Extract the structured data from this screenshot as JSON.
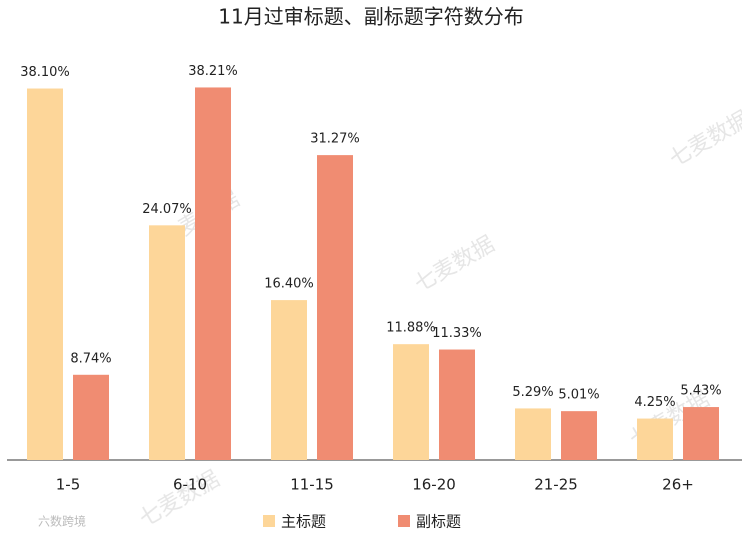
{
  "chart_data": {
    "type": "bar",
    "title": "11月过审标题、副标题字符数分布",
    "categories": [
      "1-5",
      "6-10",
      "11-15",
      "16-20",
      "21-25",
      "26+"
    ],
    "series": [
      {
        "name": "主标题",
        "color": "#fdd699",
        "values": [
          38.1,
          24.07,
          16.4,
          11.88,
          5.29,
          4.25
        ],
        "value_labels": [
          "38.10%",
          "24.07%",
          "16.40%",
          "11.88%",
          "5.29%",
          "4.25%"
        ]
      },
      {
        "name": "副标题",
        "color": "#f08c72",
        "values": [
          8.74,
          38.21,
          31.27,
          11.33,
          5.01,
          5.43
        ],
        "value_labels": [
          "8.74%",
          "38.21%",
          "31.27%",
          "11.33%",
          "5.01%",
          "5.43%"
        ]
      }
    ],
    "ylim": [
      0,
      40
    ],
    "legend": "bottom",
    "watermark": "七麦数据",
    "footer_logo": "六数跨境"
  }
}
